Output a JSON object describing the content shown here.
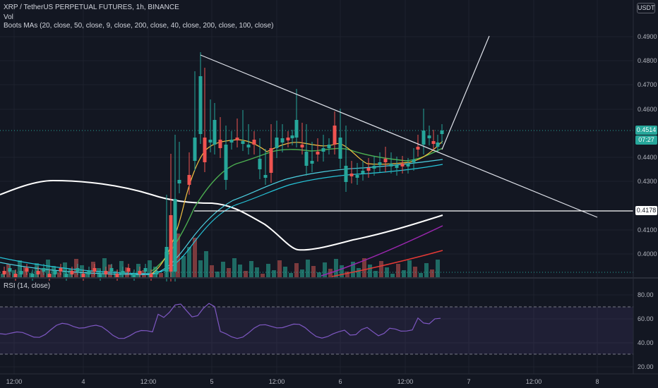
{
  "header": {
    "symbol_title": "XRP / TetherUS PERPETUAL FUTURES, 1h, BINANCE",
    "vol_label": "Vol",
    "ma_label": "Boots MAs (20, close, 50, close, 9, close, 200, close, 40, close, 200, close, 100, close)",
    "currency": "USDT"
  },
  "rsi": {
    "label": "RSI (14, close)",
    "ticks": [
      "80.00",
      "60.00",
      "40.00",
      "20.00"
    ]
  },
  "price_axis": {
    "ticks": [
      "0.4900",
      "0.4800",
      "0.4700",
      "0.4600",
      "0.4400",
      "0.4300",
      "0.4100",
      "0.4000"
    ],
    "last_price": "0.4514",
    "countdown": "07:27",
    "line_price": "0.4178"
  },
  "time_axis": {
    "ticks": [
      "12:00",
      "4",
      "12:00",
      "5",
      "12:00",
      "6",
      "12:00",
      "7",
      "12:00",
      "8"
    ]
  },
  "colors": {
    "background": "#131722",
    "up": "#26a69a",
    "down": "#ef5350",
    "rsi_line": "#7e57c2",
    "ma_white": "#ffffff",
    "ma_yellow": "#f5c342",
    "ma_green": "#4caf50",
    "ma_teal": "#26c6da",
    "ma_purple": "#9c27b0",
    "ma_red": "#e53935"
  }
}
